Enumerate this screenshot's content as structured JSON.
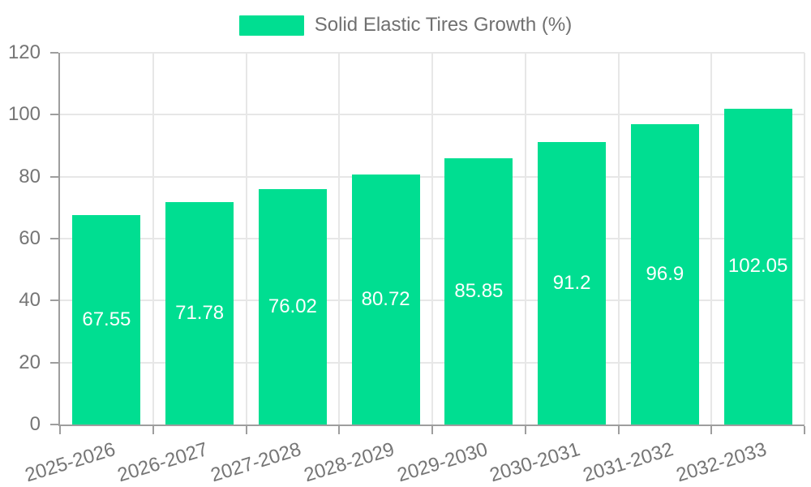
{
  "legend": {
    "label": "Solid Elastic Tires Growth (%)"
  },
  "chart_data": {
    "type": "bar",
    "title": "Solid Elastic Tires Growth (%)",
    "series_name": "Solid Elastic Tires Growth (%)",
    "categories": [
      "2025-2026",
      "2026-2027",
      "2027-2028",
      "2028-2029",
      "2029-2030",
      "2030-2031",
      "2031-2032",
      "2032-2033"
    ],
    "values": [
      67.55,
      71.78,
      76.02,
      80.72,
      85.85,
      91.2,
      96.9,
      102.05
    ],
    "xlabel": "",
    "ylabel": "",
    "ylim": [
      0,
      120
    ],
    "yticks": [
      0,
      20,
      40,
      60,
      80,
      100,
      120
    ],
    "ytick_step": 20,
    "grid": true,
    "legend_position": "top",
    "bar_labels_inside": true,
    "x_label_rotation_deg": -17,
    "colors": {
      "bar": "#00DE91",
      "grid": "#e7e7e7",
      "axis": "#9e9e9e",
      "tick_text": "#757575",
      "legend_text": "#707070",
      "bar_label_text": "#ffffff",
      "background": "#ffffff"
    }
  }
}
